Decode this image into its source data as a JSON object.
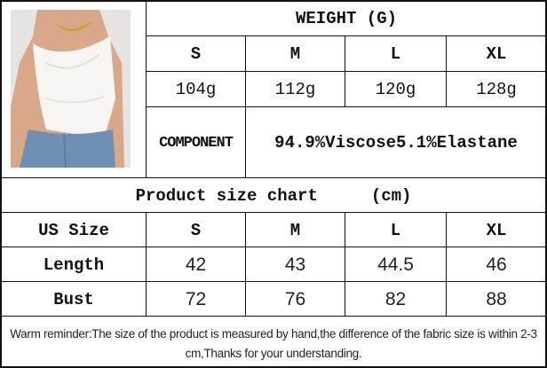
{
  "weight_table": {
    "title": "WEIGHT (G)",
    "sizes": [
      "S",
      "M",
      "L",
      "XL"
    ],
    "weights": [
      "104g",
      "112g",
      "120g",
      "128g"
    ],
    "component_label": "COMPONENT",
    "component_value": "94.9%Viscose5.1%Elastane"
  },
  "size_chart": {
    "title": "Product size chart",
    "unit": "(cm)",
    "header_label": "US Size",
    "sizes": [
      "S",
      "M",
      "L",
      "XL"
    ],
    "rows": [
      {
        "label": "Length",
        "values": [
          "42",
          "43",
          "44.5",
          "46"
        ]
      },
      {
        "label": "Bust",
        "values": [
          "72",
          "76",
          "82",
          "88"
        ]
      }
    ]
  },
  "reminder": "Warm reminder:The size of the product is measured by hand,the difference of the fabric size is within 2-3 cm,Thanks for your understanding."
}
